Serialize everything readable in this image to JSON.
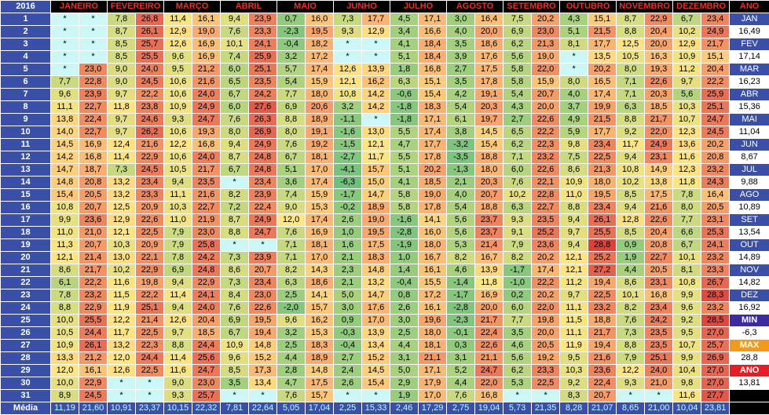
{
  "year": "2016",
  "ano_label": "ANO",
  "media_label": "Média",
  "months": [
    "JANEIRO",
    "FEVEREIRO",
    "MARÇO",
    "ABRIL",
    "MAIO",
    "JUNHO",
    "JULHO",
    "AGOSTO",
    "SETEMBRO",
    "OUTUBRO",
    "NOVEMBRO",
    "DEZEMBRO"
  ],
  "rows": [
    [
      "*",
      "*",
      "7,8",
      "26,8",
      "11,4",
      "16,1",
      "9,4",
      "23,9",
      "0,7",
      "16,0",
      "7,3",
      "17,7",
      "4,5",
      "17,1",
      "3,0",
      "16,4",
      "7,5",
      "20,2",
      "4,3",
      "15,1",
      "8,7",
      "22,9",
      "6,7",
      "23,4"
    ],
    [
      "*",
      "*",
      "8,7",
      "26,1",
      "12,9",
      "19,0",
      "7,6",
      "23,3",
      "-2,3",
      "19,5",
      "9,3",
      "12,9",
      "3,4",
      "16,6",
      "4,0",
      "20,0",
      "6,9",
      "23,0",
      "5,1",
      "21,5",
      "8,8",
      "20,4",
      "10,2",
      "24,9"
    ],
    [
      "*",
      "*",
      "8,5",
      "25,7",
      "12,6",
      "16,9",
      "10,1",
      "24,1",
      "-0,4",
      "18,2",
      "*",
      "*",
      "4,1",
      "18,4",
      "3,5",
      "18,6",
      "6,2",
      "21,3",
      "8,1",
      "17,7",
      "12,5",
      "20,0",
      "12,9",
      "21,7"
    ],
    [
      "*",
      "*",
      "8,5",
      "25,5",
      "9,6",
      "16,9",
      "7,4",
      "25,9",
      "3,2",
      "17,2",
      "*",
      "*",
      "5,1",
      "18,4",
      "3,9",
      "17,6",
      "5,6",
      "19,0",
      "*",
      "13,5",
      "10,5",
      "16,3",
      "10,9",
      "15,1"
    ],
    [
      "*",
      "23,0",
      "9,0",
      "24,0",
      "9,5",
      "21,2",
      "6,0",
      "25,1",
      "5,7",
      "17,4",
      "12,6",
      "13,9",
      "1,8",
      "16,8",
      "2,7",
      "17,5",
      "5,8",
      "22,0",
      "*",
      "20,2",
      "8,0",
      "19,3",
      "11,2",
      "20,4"
    ],
    [
      "7,7",
      "22,8",
      "9,0",
      "24,5",
      "10,6",
      "21,6",
      "6,5",
      "23,5",
      "5,4",
      "15,9",
      "12,1",
      "16,2",
      "6,3",
      "15,1",
      "3,5",
      "17,8",
      "5,8",
      "15,9",
      "8,0",
      "16,5",
      "7,1",
      "22,6",
      "9,7",
      "22,2"
    ],
    [
      "9,6",
      "23,9",
      "9,7",
      "22,2",
      "10,6",
      "24,0",
      "6,7",
      "24,2",
      "7,7",
      "18,0",
      "10,8",
      "14,2",
      "-0,6",
      "15,4",
      "4,2",
      "19,1",
      "5,4",
      "20,7",
      "4,0",
      "17,4",
      "7,1",
      "20,3",
      "5,6",
      "25,9"
    ],
    [
      "11,1",
      "22,7",
      "11,8",
      "23,8",
      "10,9",
      "24,9",
      "6,0",
      "27,6",
      "6,9",
      "20,6",
      "3,2",
      "14,2",
      "-1,8",
      "18,3",
      "5,4",
      "20,3",
      "4,3",
      "20,0",
      "3,7",
      "19,9",
      "6,3",
      "18,5",
      "10,3",
      "25,1"
    ],
    [
      "13,8",
      "22,4",
      "9,7",
      "24,6",
      "9,3",
      "24,7",
      "7,6",
      "26,3",
      "8,8",
      "18,9",
      "-1,1",
      "*",
      "-1,8",
      "17,1",
      "6,1",
      "19,7",
      "2,7",
      "22,6",
      "4,9",
      "21,5",
      "8,8",
      "21,7",
      "10,7",
      "24,7"
    ],
    [
      "14,0",
      "22,7",
      "9,7",
      "26,2",
      "10,6",
      "19,3",
      "8,0",
      "26,9",
      "8,0",
      "19,1",
      "-1,6",
      "13,0",
      "5,5",
      "17,4",
      "3,8",
      "14,5",
      "6,5",
      "22,2",
      "5,9",
      "17,7",
      "9,2",
      "22,0",
      "12,3",
      "24,5"
    ],
    [
      "14,5",
      "16,9",
      "12,4",
      "21,6",
      "12,2",
      "16,8",
      "9,4",
      "24,9",
      "7,6",
      "19,2",
      "-1,5",
      "12,1",
      "4,7",
      "17,7",
      "-3,2",
      "15,4",
      "6,2",
      "22,3",
      "9,8",
      "23,4",
      "11,7",
      "24,9",
      "13,6",
      "20,2"
    ],
    [
      "14,2",
      "16,8",
      "11,4",
      "22,9",
      "10,6",
      "24,0",
      "8,7",
      "24,8",
      "6,7",
      "18,1",
      "-2,7",
      "11,7",
      "5,5",
      "17,8",
      "-3,5",
      "18,8",
      "7,1",
      "23,2",
      "7,5",
      "22,5",
      "9,4",
      "23,1",
      "11,6",
      "20,8"
    ],
    [
      "14,7",
      "18,7",
      "7,3",
      "24,5",
      "10,5",
      "21,7",
      "6,7",
      "24,8",
      "5,1",
      "17,0",
      "-4,1",
      "15,7",
      "5,1",
      "20,2",
      "-1,3",
      "18,0",
      "6,0",
      "22,6",
      "8,6",
      "21,3",
      "10,8",
      "14,9",
      "12,3",
      "23,2"
    ],
    [
      "14,8",
      "20,8",
      "13,2",
      "23,4",
      "9,4",
      "23,5",
      "*",
      "23,4",
      "3,6",
      "17,4",
      "-6,3",
      "15,0",
      "4,1",
      "18,5",
      "2,1",
      "20,3",
      "7,6",
      "22,1",
      "10,9",
      "18,0",
      "10,2",
      "13,8",
      "11,8",
      "24,3"
    ],
    [
      "15,4",
      "20,5",
      "13,2",
      "23,3",
      "11,1",
      "21,6",
      "8,2",
      "23,9",
      "7,4",
      "15,9",
      "-1,7",
      "14,7",
      "5,8",
      "19,0",
      "4,0",
      "20,7",
      "10,2",
      "22,8",
      "11,0",
      "19,5",
      "8,5",
      "17,5",
      "7,8",
      "16,4"
    ],
    [
      "10,8",
      "20,7",
      "12,5",
      "20,9",
      "10,3",
      "22,7",
      "7,2",
      "22,4",
      "9,0",
      "15,3",
      "-0,2",
      "18,9",
      "5,8",
      "17,8",
      "5,4",
      "18,8",
      "6,3",
      "22,7",
      "8,8",
      "23,4",
      "9,4",
      "21,6",
      "8,0",
      "20,5"
    ],
    [
      "9,9",
      "23,6",
      "12,9",
      "22,6",
      "11,0",
      "21,9",
      "8,7",
      "24,9",
      "12,0",
      "17,4",
      "2,6",
      "19,0",
      "-1,6",
      "14,1",
      "5,6",
      "23,7",
      "9,3",
      "23,5",
      "9,4",
      "26,1",
      "12,8",
      "22,6",
      "7,7",
      "23,1"
    ],
    [
      "11,0",
      "21,0",
      "12,1",
      "22,5",
      "7,9",
      "23,0",
      "8,8",
      "24,7",
      "7,6",
      "16,9",
      "1,0",
      "19,5",
      "-2,8",
      "16,0",
      "5,6",
      "23,7",
      "9,1",
      "25,2",
      "9,7",
      "25,5",
      "8,5",
      "20,4",
      "6,6",
      "25,3"
    ],
    [
      "11,3",
      "20,7",
      "10,3",
      "20,9",
      "7,9",
      "25,8",
      "*",
      "*",
      "7,1",
      "18,1",
      "1,6",
      "17,5",
      "-1,9",
      "18,0",
      "5,3",
      "21,4",
      "7,9",
      "23,6",
      "9,4",
      "28,8",
      "0,9",
      "20,8",
      "6,7",
      "24,1"
    ],
    [
      "12,1",
      "21,4",
      "13,0",
      "22,1",
      "7,8",
      "24,2",
      "7,3",
      "23,9",
      "7,1",
      "17,0",
      "2,1",
      "18,3",
      "1,0",
      "16,7",
      "8,2",
      "16,7",
      "8,2",
      "20,2",
      "12,1",
      "25,2",
      "1,9",
      "22,7",
      "10,1",
      "23,2"
    ],
    [
      "8,6",
      "21,7",
      "10,2",
      "22,9",
      "6,9",
      "24,8",
      "8,6",
      "20,7",
      "8,2",
      "14,3",
      "2,3",
      "14,8",
      "1,4",
      "16,1",
      "4,6",
      "13,9",
      "-1,7",
      "17,4",
      "12,1",
      "27,2",
      "4,4",
      "20,5",
      "8,1",
      "23,3"
    ],
    [
      "6,1",
      "22,2",
      "11,6",
      "19,8",
      "9,4",
      "22,9",
      "7,3",
      "23,4",
      "6,3",
      "18,6",
      "2,1",
      "13,2",
      "-0,4",
      "15,5",
      "-1,4",
      "11,8",
      "-1,0",
      "22,2",
      "11,2",
      "19,4",
      "8,6",
      "23,1",
      "10,8",
      "26,7"
    ],
    [
      "7,8",
      "23,2",
      "11,5",
      "22,2",
      "11,4",
      "24,1",
      "8,4",
      "23,0",
      "2,5",
      "14,1",
      "5,0",
      "14,7",
      "0,8",
      "17,2",
      "-1,7",
      "16,9",
      "0,2",
      "20,2",
      "9,7",
      "22,5",
      "10,1",
      "16,8",
      "9,9",
      "28,3"
    ],
    [
      "8,8",
      "22,9",
      "11,9",
      "25,1",
      "9,4",
      "24,0",
      "7,6",
      "22,6",
      "-2,0",
      "15,7",
      "3,0",
      "17,6",
      "2,6",
      "16,1",
      "-2,8",
      "20,0",
      "6,0",
      "22,0",
      "11,1",
      "23,2",
      "8,2",
      "23,4",
      "9,6",
      "23,2"
    ],
    [
      "10,0",
      "25,5",
      "12,2",
      "21,4",
      "12,6",
      "20,4",
      "6,9",
      "19,5",
      "9,6",
      "16,2",
      "0,9",
      "17,0",
      "3,0",
      "19,6",
      "-2,3",
      "21,7",
      "7,7",
      "19,8",
      "11,5",
      "18,8",
      "7,6",
      "24,2",
      "9,2",
      "28,5"
    ],
    [
      "10,5",
      "24,4",
      "11,7",
      "22,5",
      "9,7",
      "18,5",
      "6,7",
      "19,4",
      "3,2",
      "15,3",
      "-0,3",
      "13,9",
      "2,5",
      "18,0",
      "-0,1",
      "22,4",
      "3,5",
      "20,0",
      "11,1",
      "21,7",
      "7,3",
      "23,5",
      "9,5",
      "27,0"
    ],
    [
      "10,9",
      "26,1",
      "13,2",
      "22,3",
      "8,8",
      "24,4",
      "10,9",
      "14,8",
      "2,5",
      "18,3",
      "-0,4",
      "13,4",
      "4,4",
      "18,1",
      "0,3",
      "22,6",
      "4,6",
      "20,5",
      "11,9",
      "19,4",
      "8,8",
      "23,5",
      "10,7",
      "25,7"
    ],
    [
      "13,3",
      "21,2",
      "12,0",
      "24,4",
      "11,4",
      "25,6",
      "9,6",
      "15,2",
      "4,4",
      "18,9",
      "2,7",
      "15,2",
      "3,1",
      "21,1",
      "3,1",
      "21,1",
      "5,6",
      "19,2",
      "9,5",
      "21,6",
      "7,9",
      "25,1",
      "9,9",
      "26,9"
    ],
    [
      "12,0",
      "16,1",
      "12,6",
      "22,5",
      "11,6",
      "24,7",
      "8,5",
      "17,3",
      "2,8",
      "14,8",
      "2,4",
      "14,5",
      "5,0",
      "17,1",
      "5,2",
      "24,7",
      "6,2",
      "23,3",
      "10,3",
      "23,6",
      "12,2",
      "24,0",
      "10,4",
      "27,0"
    ],
    [
      "10,0",
      "22,9",
      "*",
      "*",
      "9,0",
      "23,0",
      "3,5",
      "13,4",
      "4,7",
      "17,5",
      "2,6",
      "15,4",
      "2,9",
      "17,9",
      "4,4",
      "22,0",
      "5,3",
      "22,5",
      "9,2",
      "22,4",
      "9,3",
      "21,0",
      "9,8",
      "27,0"
    ],
    [
      "8,9",
      "24,5",
      "*",
      "*",
      "9,3",
      "25,7",
      "*",
      "*",
      "7,6",
      "15,7",
      "*",
      "*",
      "1,9",
      "17,0",
      "7,6",
      "16,8",
      "*",
      "*",
      "8,3",
      "20,7",
      "*",
      "*",
      "11,6",
      "27,7"
    ]
  ],
  "media": [
    "11,19",
    "21,60",
    "10,91",
    "23,37",
    "10,15",
    "22,32",
    "7,81",
    "22,64",
    "5,05",
    "17,04",
    "2,25",
    "15,33",
    "2,46",
    "17,29",
    "2,75",
    "19,04",
    "5,73",
    "21,35",
    "8,28",
    "21,07",
    "8,65",
    "21,00",
    "10,04",
    "23,81"
  ],
  "side": [
    {
      "t": "JAN",
      "k": "mon"
    },
    {
      "t": "16,49",
      "k": "val"
    },
    {
      "t": "FEV",
      "k": "mon"
    },
    {
      "t": "17,14",
      "k": "val"
    },
    {
      "t": "MAR",
      "k": "mon"
    },
    {
      "t": "16,23",
      "k": "val"
    },
    {
      "t": "ABR",
      "k": "mon"
    },
    {
      "t": "15,36",
      "k": "val"
    },
    {
      "t": "MAI",
      "k": "mon"
    },
    {
      "t": "11,04",
      "k": "val"
    },
    {
      "t": "JUN",
      "k": "mon"
    },
    {
      "t": "8,67",
      "k": "val"
    },
    {
      "t": "JUL",
      "k": "mon"
    },
    {
      "t": "9,88",
      "k": "val"
    },
    {
      "t": "AGO",
      "k": "mon"
    },
    {
      "t": "10,89",
      "k": "val"
    },
    {
      "t": "SET",
      "k": "mon"
    },
    {
      "t": "13,54",
      "k": "val"
    },
    {
      "t": "OUT",
      "k": "mon"
    },
    {
      "t": "14,89",
      "k": "val"
    },
    {
      "t": "NOV",
      "k": "mon"
    },
    {
      "t": "14,82",
      "k": "val"
    },
    {
      "t": "DEZ",
      "k": "mon"
    },
    {
      "t": "16,92",
      "k": "val"
    },
    {
      "t": "MIN",
      "k": "min"
    },
    {
      "t": "-6,3",
      "k": "val"
    },
    {
      "t": "MAX",
      "k": "max"
    },
    {
      "t": "28,8",
      "k": "val"
    },
    {
      "t": "ANO",
      "k": "ano"
    },
    {
      "t": "13,81",
      "k": "val"
    },
    {
      "t": "",
      "k": "blank"
    }
  ]
}
